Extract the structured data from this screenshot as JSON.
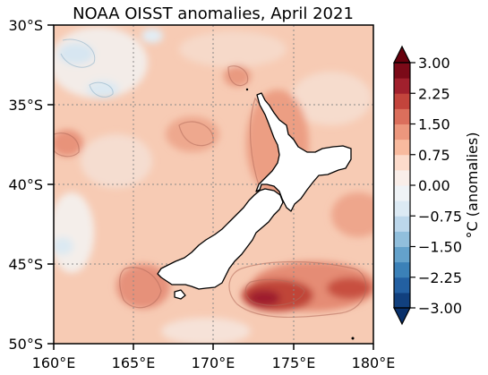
{
  "title": "NOAA OISST anomalies, April 2021",
  "map": {
    "lat_labels": [
      "30°S",
      "35°S",
      "40°S",
      "45°S",
      "50°S"
    ],
    "lon_labels": [
      "160°E",
      "165°E",
      "170°E",
      "175°E",
      "180°E"
    ],
    "lat_range": [
      -50,
      -30
    ],
    "lon_range": [
      160,
      180
    ],
    "gridlines": true,
    "land_color": "#ffffff",
    "coastline_color": "#000000"
  },
  "colorbar": {
    "label": "°C (anomalies)",
    "ticks": [
      "3.00",
      "2.25",
      "1.50",
      "0.75",
      "0.00",
      "−0.75",
      "−1.50",
      "−2.25",
      "−3.00"
    ],
    "range": [
      -3.0,
      3.0
    ],
    "extend": "both",
    "colormap": "RdBu_r",
    "colors": [
      "#08306b",
      "#1f5b9e",
      "#3f86bc",
      "#7ab2d4",
      "#b7d4ea",
      "#e1edf5",
      "#f7f7f7",
      "#fde0d2",
      "#f7b597",
      "#e6856d",
      "#c94a3f",
      "#9b1a2a",
      "#67000d"
    ]
  }
}
